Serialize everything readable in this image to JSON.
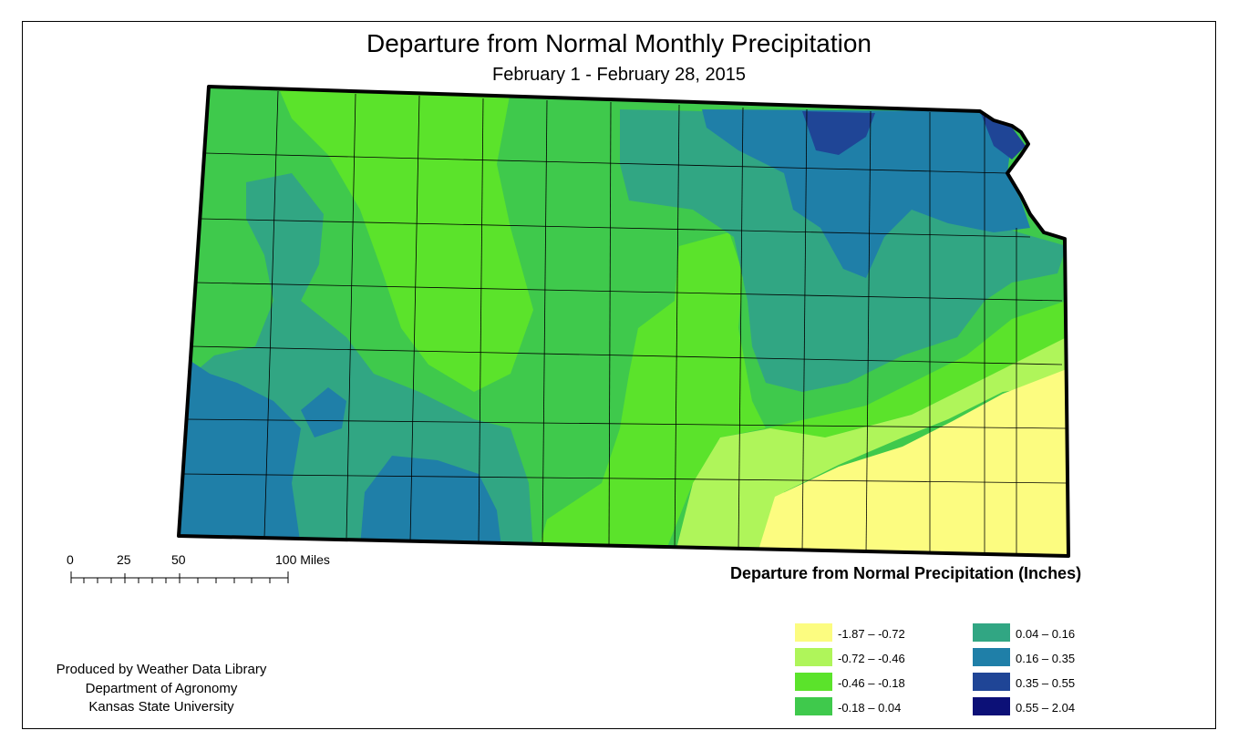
{
  "title": "Departure from Normal Monthly Precipitation",
  "subtitle": "February 1 - February 28, 2015",
  "scale_bar": {
    "labels": [
      "0",
      "25",
      "50",
      "100 Miles"
    ]
  },
  "legend": {
    "title": "Departure from Normal Precipitation (Inches)",
    "classes": [
      {
        "label": "-1.87 – -0.72",
        "color": "#fcfc80"
      },
      {
        "label": "-0.72 – -0.46",
        "color": "#aff55a"
      },
      {
        "label": "-0.46 – -0.18",
        "color": "#5be32b"
      },
      {
        "label": "-0.18 – 0.04",
        "color": "#3fc94c"
      },
      {
        "label": "0.04 – 0.16",
        "color": "#31a683"
      },
      {
        "label": "0.16 – 0.35",
        "color": "#1f7fa8"
      },
      {
        "label": "0.35 – 0.55",
        "color": "#1f4596"
      },
      {
        "label": "0.55 – 2.04",
        "color": "#0c1077"
      }
    ]
  },
  "credits": [
    "Produced by Weather Data Library",
    "Department of Agronomy",
    "Kansas State University"
  ]
}
